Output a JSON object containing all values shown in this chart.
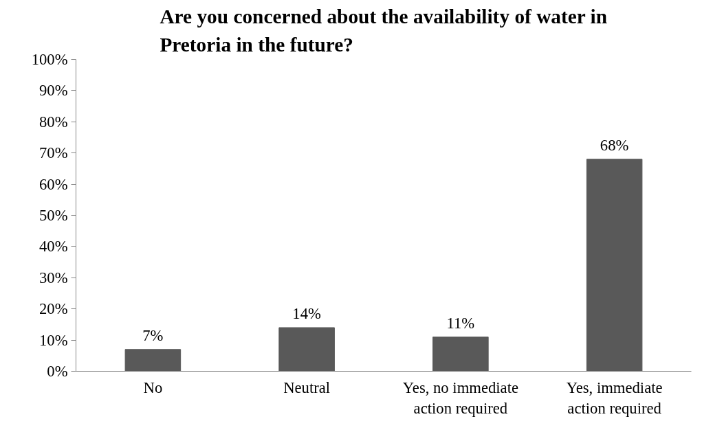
{
  "chart_data": {
    "type": "bar",
    "title": "Are you concerned about the availability of water in Pretoria in the future?",
    "categories": [
      "No",
      "Neutral",
      "Yes, no immediate action required",
      "Yes, immediate action required"
    ],
    "values": [
      7,
      14,
      11,
      68
    ],
    "color": "#595959",
    "value_labels": [
      "7%",
      "14%",
      "11%",
      "68%"
    ],
    "ylim": [
      0,
      100
    ],
    "yticks": [
      {
        "value": 0,
        "label": "0%"
      },
      {
        "value": 10,
        "label": "10%"
      },
      {
        "value": 20,
        "label": "20%"
      },
      {
        "value": 30,
        "label": "30%"
      },
      {
        "value": 40,
        "label": "40%"
      },
      {
        "value": 50,
        "label": "50%"
      },
      {
        "value": 60,
        "label": "60%"
      },
      {
        "value": 70,
        "label": "70%"
      },
      {
        "value": 80,
        "label": "80%"
      },
      {
        "value": 90,
        "label": "90%"
      },
      {
        "value": 100,
        "label": "100%"
      }
    ],
    "grid": false
  }
}
